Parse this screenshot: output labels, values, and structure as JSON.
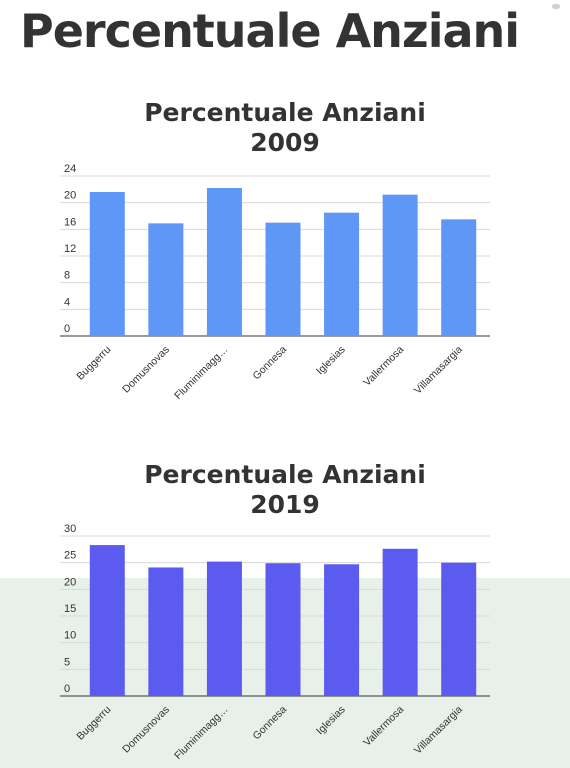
{
  "page": {
    "title": "Percentuale Anziani"
  },
  "chart_data": [
    {
      "type": "bar",
      "title_line1": "Percentuale Anziani",
      "title_line2": "2009",
      "categories": [
        "Buggerru",
        "Domusnovas",
        "Fluminimagg…",
        "Gonnesa",
        "Iglesias",
        "Vallermosa",
        "Villamasargia"
      ],
      "values": [
        21.6,
        16.9,
        22.2,
        17.0,
        18.5,
        21.2,
        17.5
      ],
      "yticks": [
        0,
        4,
        8,
        12,
        16,
        20,
        24
      ],
      "ylim": [
        0,
        24
      ],
      "color": "#5e97f6",
      "grid": true,
      "legend": "none"
    },
    {
      "type": "bar",
      "title_line1": "Percentuale Anziani",
      "title_line2": "2019",
      "categories": [
        "Buggerru",
        "Domusnovas",
        "Fluminimagg…",
        "Gonnesa",
        "Iglesias",
        "Vallermosa",
        "Villamasargia"
      ],
      "values": [
        28.3,
        24.1,
        25.2,
        24.9,
        24.7,
        27.6,
        25.0
      ],
      "yticks": [
        0,
        5,
        10,
        15,
        20,
        25,
        30
      ],
      "ylim": [
        0,
        30
      ],
      "color": "#5b5bf0",
      "grid": true,
      "legend": "none"
    }
  ]
}
